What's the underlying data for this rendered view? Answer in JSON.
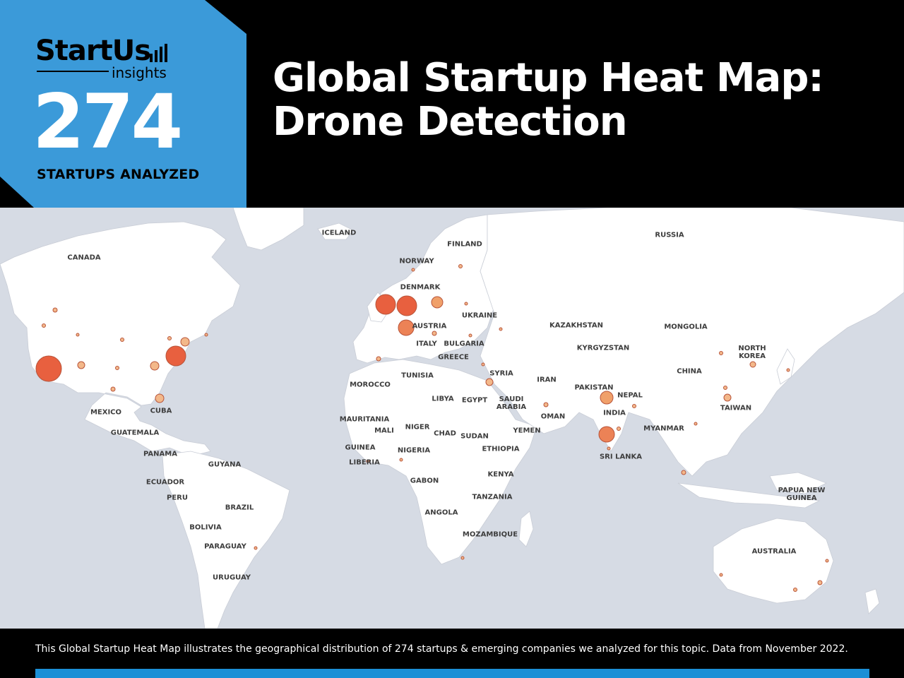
{
  "brand": {
    "logo_main": "StartUs",
    "logo_sub": "insights"
  },
  "stats": {
    "count": "274",
    "caption": "STARTUPS ANALYZED"
  },
  "title": {
    "line1": "Global Startup Heat Map:",
    "line2": "Drone Detection"
  },
  "map": {
    "colors": {
      "water": "#d6dbe4",
      "land": "#ffffff",
      "border": "#c9cdd6",
      "bubble_high": "#e8603f",
      "bubble_mid": "#f0a06a",
      "bubble_low": "#f3b88a"
    },
    "labels": [
      "ICELAND",
      "RUSSIA",
      "FINLAND",
      "NORWAY",
      "CANADA",
      "DENMARK",
      "UKRAINE",
      "AUSTRIA",
      "KAZAKHSTAN",
      "MONGOLIA",
      "ITALY",
      "BULGARIA",
      "KYRGYZSTAN",
      "NORTH KOREA",
      "GREECE",
      "CHINA",
      "SYRIA",
      "TUNISIA",
      "MOROCCO",
      "IRAN",
      "PAKISTAN",
      "LIBYA",
      "EGYPT",
      "SAUDI ARABIA",
      "NEPAL",
      "TAIWAN",
      "MEXICO",
      "CUBA",
      "INDIA",
      "OMAN",
      "MAURITANIA",
      "MALI",
      "NIGER",
      "GUATEMALA",
      "CHAD",
      "SUDAN",
      "YEMEN",
      "MYANMAR",
      "PANAMA",
      "GUINEA",
      "NIGERIA",
      "ETHIOPIA",
      "SRI LANKA",
      "LIBERIA",
      "GUYANA",
      "KENYA",
      "GABON",
      "ECUADOR",
      "PAPUA NEW GUINEA",
      "PERU",
      "TANZANIA",
      "BRAZIL",
      "ANGOLA",
      "BOLIVIA",
      "MOZAMBIQUE",
      "PARAGUAY",
      "AUSTRALIA",
      "URUGUAY"
    ]
  },
  "footer": {
    "note": "This Global Startup Heat Map illustrates the geographical distribution of 274 startups & emerging companies we analyzed for this topic. Data from November 2022."
  }
}
